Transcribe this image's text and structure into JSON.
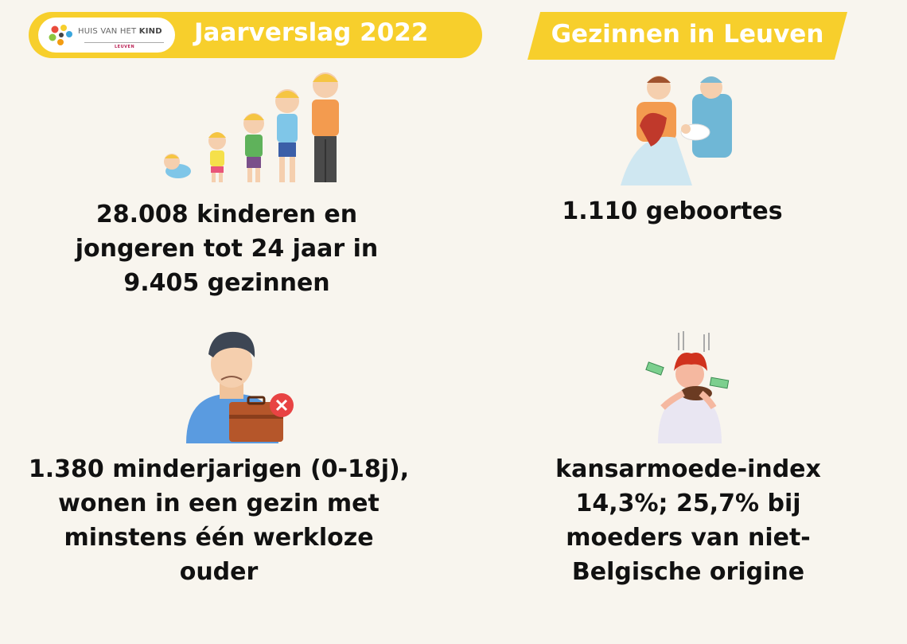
{
  "header_left": {
    "logo": {
      "text_prefix": "HUIS VAN HET",
      "text_bold": "KIND",
      "sub": "LEUVEN",
      "icon": "flower-logo-icon"
    },
    "title": "Jaarverslag 2022"
  },
  "header_right": {
    "title": "Gezinnen in Leuven"
  },
  "stats": {
    "children": {
      "icon": "growing-children-icon",
      "line1": "28.008 kinderen en",
      "line2": "jongeren tot 24 jaar in",
      "line3": "9.405 gezinnen"
    },
    "births": {
      "icon": "newborn-family-icon",
      "line1": "1.110 geboortes"
    },
    "unemployed": {
      "icon": "unemployed-parent-icon",
      "line1": "1.380 minderjarigen (0-18j),",
      "line2": "wonen in een gezin met",
      "line3": "minstens één werkloze",
      "line4": "ouder"
    },
    "poverty": {
      "icon": "stressed-person-money-icon",
      "line1": "kansarmoede-index",
      "line2": "14,3%; 25,7% bij",
      "line3": "moeders van niet-",
      "line4": "Belgische origine"
    }
  },
  "colors": {
    "accent": "#f7cf2c",
    "background": "#f8f5ee",
    "text": "#111111"
  }
}
